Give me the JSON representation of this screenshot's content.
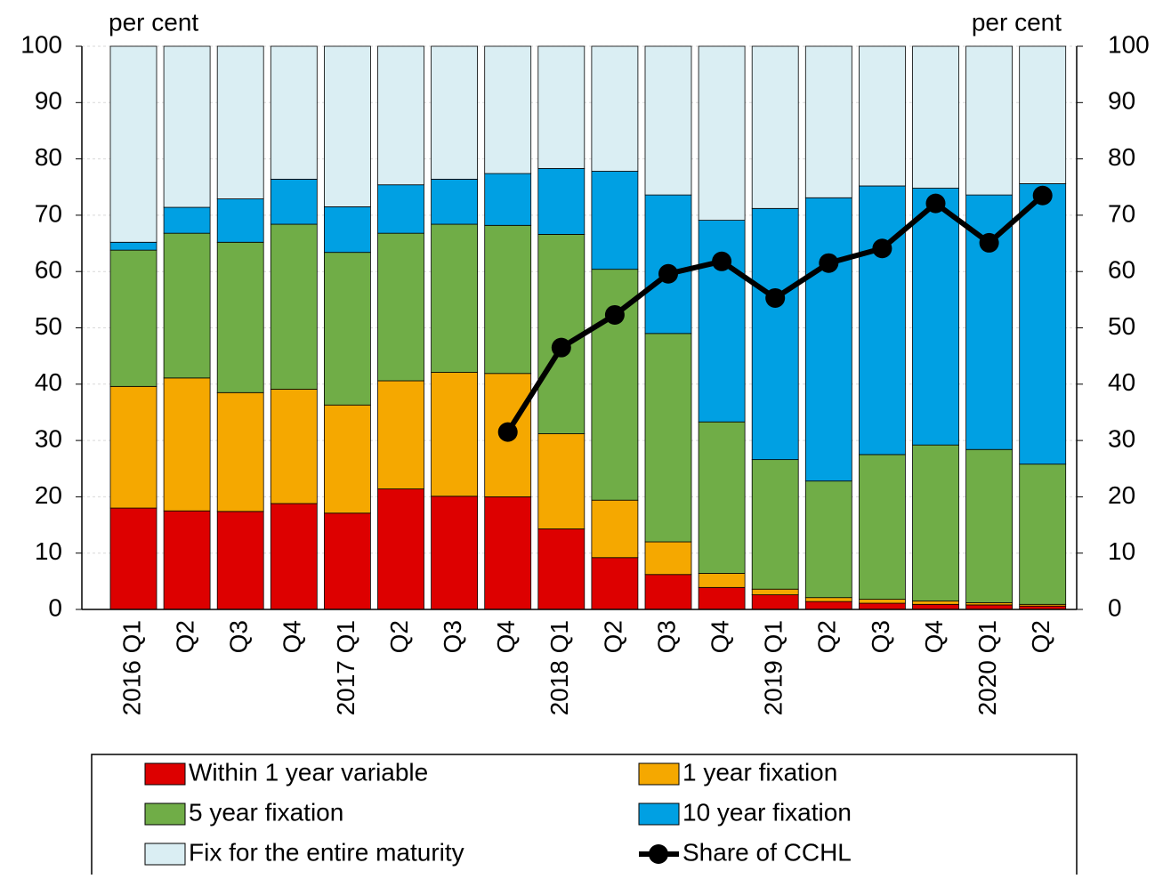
{
  "chart_data": {
    "type": "bar",
    "y_label_left": "per cent",
    "y_label_right": "per cent",
    "categories": [
      "2016 Q1",
      "Q2",
      "Q3",
      "Q4",
      "2017 Q1",
      "Q2",
      "Q3",
      "Q4",
      "2018 Q1",
      "Q2",
      "Q3",
      "Q4",
      "2019 Q1",
      "Q2",
      "Q3",
      "Q4",
      "2020 Q1",
      "Q2"
    ],
    "stacked": true,
    "grid": true,
    "ylim": [
      0,
      100
    ],
    "yticks": [
      0,
      10,
      20,
      30,
      40,
      50,
      60,
      70,
      80,
      90,
      100
    ],
    "y2lim": [
      0,
      100
    ],
    "y2ticks": [
      0,
      10,
      20,
      30,
      40,
      50,
      60,
      70,
      80,
      90,
      100
    ],
    "series": [
      {
        "name": "Within 1 year variable",
        "type": "bar",
        "color": "#dd0000",
        "values": [
          18,
          17.5,
          17.4,
          18.8,
          17.1,
          21.4,
          20.1,
          20,
          14.3,
          9.2,
          6.2,
          3.9,
          2.6,
          1.4,
          1.1,
          0.9,
          0.8,
          0.6
        ]
      },
      {
        "name": "1 year fixation",
        "type": "bar",
        "color": "#f5a800",
        "values": [
          21.6,
          23.6,
          21.1,
          20.3,
          19.2,
          19.2,
          22,
          21.9,
          16.9,
          10.2,
          5.8,
          2.5,
          1,
          0.7,
          0.7,
          0.6,
          0.4,
          0.3
        ]
      },
      {
        "name": "5 year fixation",
        "type": "bar",
        "color": "#70ad47",
        "values": [
          24.2,
          25.7,
          26.7,
          29.3,
          27.1,
          26.2,
          26.3,
          26.3,
          35.4,
          41,
          37,
          26.9,
          23,
          20.7,
          25.7,
          27.7,
          27.2,
          24.9
        ]
      },
      {
        "name": "10 year fixation",
        "type": "bar",
        "color": "#00a0e3",
        "values": [
          1.4,
          4.6,
          7.7,
          8,
          8.1,
          8.6,
          8,
          9.2,
          11.7,
          17.4,
          24.6,
          35.8,
          44.6,
          50.3,
          47.7,
          45.6,
          45.2,
          49.8
        ]
      },
      {
        "name": "Fix for the entire maturity",
        "type": "bar",
        "color": "#daeef3",
        "values": [
          34.8,
          28.6,
          27.1,
          23.6,
          28.5,
          24.6,
          23.6,
          22.6,
          21.7,
          22.2,
          26.4,
          30.9,
          28.8,
          26.9,
          24.8,
          25.2,
          26.4,
          24.4
        ]
      },
      {
        "name": "Share of CCHL",
        "type": "line",
        "axis": "y2",
        "color": "#000000",
        "values": [
          null,
          null,
          null,
          null,
          null,
          null,
          null,
          31.5,
          46.5,
          52.3,
          59.6,
          61.8,
          55.3,
          61.5,
          64.1,
          72.1,
          65.1,
          73.5
        ]
      }
    ]
  }
}
